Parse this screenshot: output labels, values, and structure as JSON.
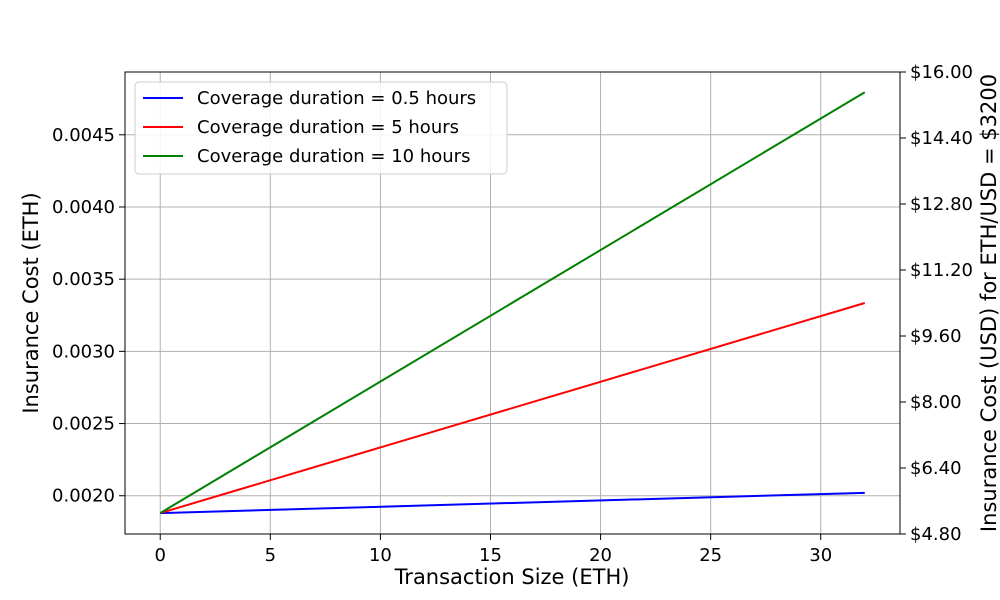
{
  "chart_data": {
    "type": "line",
    "title": "",
    "xlabel": "Transaction Size (ETH)",
    "ylabel": "Insurance Cost (ETH)",
    "ylabel_right": "Insurance Cost (USD) for ETH/USD = $3200",
    "xlim": [
      -1.6,
      33.6
    ],
    "ylim": [
      0.001735,
      0.004935
    ],
    "ylim_right": [
      4.8,
      16.0
    ],
    "x_ticks": [
      0,
      5,
      10,
      15,
      20,
      25,
      30
    ],
    "x_tick_labels": [
      "0",
      "5",
      "10",
      "15",
      "20",
      "25",
      "30"
    ],
    "y_ticks": [
      0.002,
      0.0025,
      0.003,
      0.0035,
      0.004,
      0.0045
    ],
    "y_tick_labels": [
      "0.0020",
      "0.0025",
      "0.0030",
      "0.0035",
      "0.0040",
      "0.0045"
    ],
    "y_right_ticks": [
      4.8,
      6.4,
      8.0,
      9.6,
      11.2,
      12.8,
      14.4,
      16.0
    ],
    "y_right_tick_labels": [
      "$4.80",
      "$6.40",
      "$8.00",
      "$9.60",
      "$11.20",
      "$12.80",
      "$14.40",
      "$16.00"
    ],
    "grid": true,
    "legend_position": "top-left",
    "series": [
      {
        "name": "Coverage duration = 0.5 hours",
        "color": "#0000ff",
        "x": [
          0,
          32
        ],
        "y": [
          0.00188,
          0.00202
        ]
      },
      {
        "name": "Coverage duration = 5 hours",
        "color": "#ff0000",
        "x": [
          0,
          32
        ],
        "y": [
          0.00188,
          0.003335
        ]
      },
      {
        "name": "Coverage duration = 10 hours",
        "color": "#008000",
        "x": [
          0,
          32
        ],
        "y": [
          0.00188,
          0.004795
        ]
      }
    ]
  }
}
